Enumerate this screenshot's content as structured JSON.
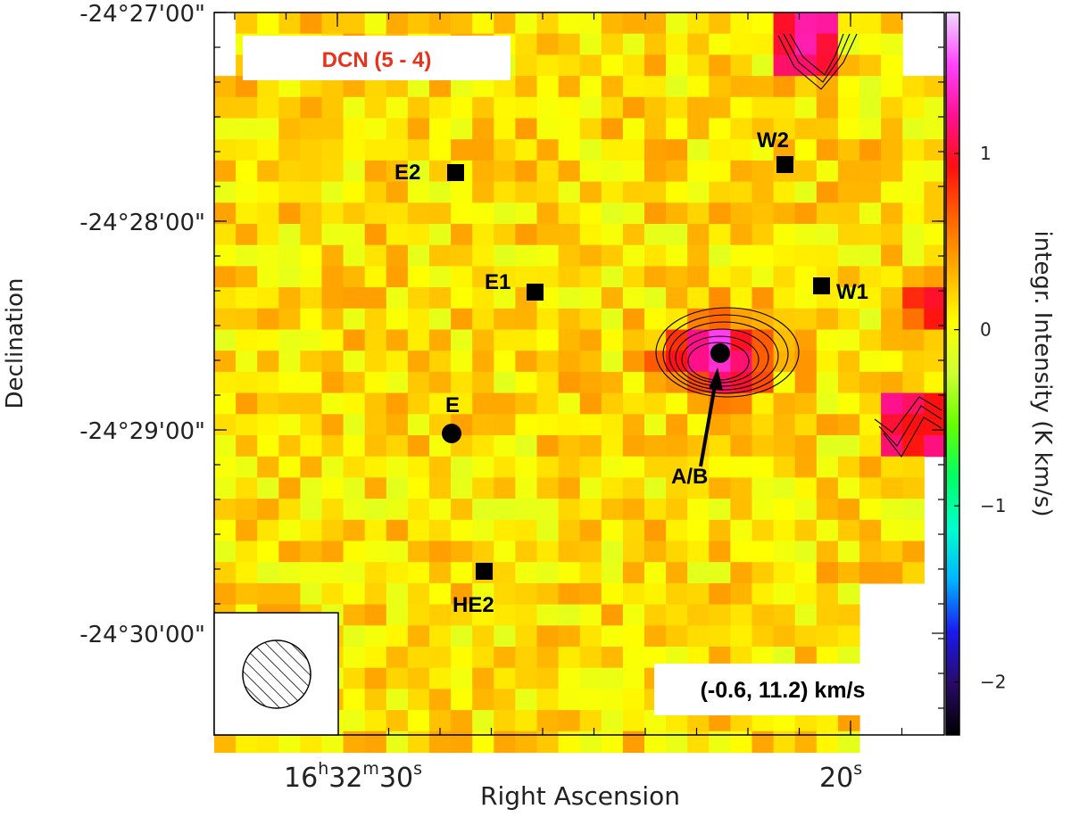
{
  "chart_data": {
    "type": "heatmap",
    "title": "DCN (5 - 4)",
    "velocity_range": "(-0.6, 11.2) km/s",
    "xlabel": "Right Ascension",
    "ylabel": "Declination",
    "colorbar_label": "integr. Intensity (K km/s)",
    "colorbar_range": [
      -2.3,
      1.8
    ],
    "colorbar_ticks": [
      "1",
      "0",
      "−1",
      "−2"
    ],
    "colorbar_tick_values": [
      1,
      0,
      -1,
      -2
    ],
    "colormap": [
      "#000000",
      "#2a0a66",
      "#1a1aee",
      "#00b4ff",
      "#00ffcc",
      "#00ff66",
      "#66ff00",
      "#ccff33",
      "#ffff00",
      "#ffb000",
      "#ff6600",
      "#ff1010",
      "#ff1090",
      "#ff44ff",
      "#f0d8ff"
    ],
    "x_ticks": [
      {
        "h": "16",
        "m": "32",
        "s": "30",
        "label": "16h32m30s"
      },
      {
        "h": "",
        "m": "",
        "s": "20",
        "label": "20s"
      }
    ],
    "y_ticks": [
      "-24°27'00\"",
      "-24°28'00\"",
      "-24°29'00\"",
      "-24°30'00\""
    ],
    "sources": [
      {
        "name": "E2",
        "marker": "square"
      },
      {
        "name": "W2",
        "marker": "square"
      },
      {
        "name": "E1",
        "marker": "square"
      },
      {
        "name": "W1",
        "marker": "square"
      },
      {
        "name": "E",
        "marker": "circle"
      },
      {
        "name": "A/B",
        "marker": "circle",
        "arrow": true
      },
      {
        "name": "HE2",
        "marker": "square"
      }
    ],
    "peak": {
      "source": "A/B",
      "value": 1.5
    },
    "beam": "hatched-circle"
  }
}
